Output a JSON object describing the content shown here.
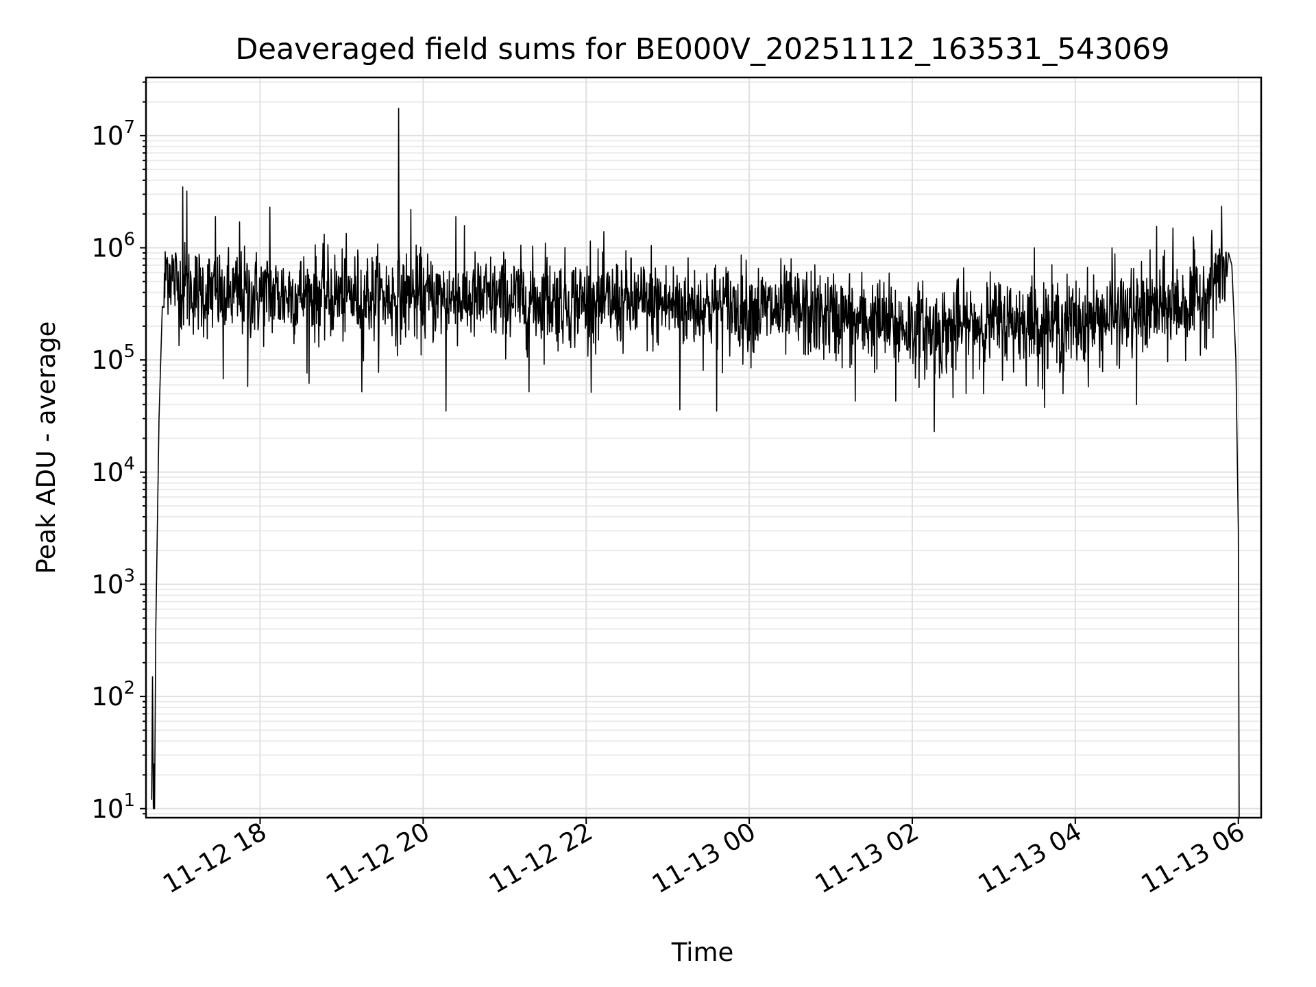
{
  "chart_data": {
    "type": "line",
    "title": "Deaveraged field sums for BE000V_20251112_163531_543069",
    "xlabel": "Time",
    "ylabel": "Peak ADU - average",
    "yscale": "log",
    "ylim": [
      8.3,
      33000000
    ],
    "xlim_hours": [
      16.6,
      30.28
    ],
    "grid": true,
    "y_ticks": [
      {
        "value": 10,
        "base": "10",
        "exp": "1"
      },
      {
        "value": 100,
        "base": "10",
        "exp": "2"
      },
      {
        "value": 1000,
        "base": "10",
        "exp": "3"
      },
      {
        "value": 10000,
        "base": "10",
        "exp": "4"
      },
      {
        "value": 100000,
        "base": "10",
        "exp": "5"
      },
      {
        "value": 1000000,
        "base": "10",
        "exp": "6"
      },
      {
        "value": 10000000,
        "base": "10",
        "exp": "7"
      }
    ],
    "x_ticks": [
      {
        "hours": 18,
        "label": "11-12 18"
      },
      {
        "hours": 20,
        "label": "11-12 20"
      },
      {
        "hours": 22,
        "label": "11-12 22"
      },
      {
        "hours": 24,
        "label": "11-13 00"
      },
      {
        "hours": 26,
        "label": "11-13 02"
      },
      {
        "hours": 28,
        "label": "11-13 04"
      },
      {
        "hours": 30,
        "label": "11-13 06"
      }
    ],
    "series": [
      {
        "name": "deaveraged field sum",
        "color": "#000000",
        "baseline": [
          [
            16.72,
            30000
          ],
          [
            16.85,
            700000
          ],
          [
            17.0,
            450000
          ],
          [
            17.5,
            380000
          ],
          [
            18.5,
            380000
          ],
          [
            19.5,
            370000
          ],
          [
            20.5,
            350000
          ],
          [
            21.5,
            340000
          ],
          [
            22.5,
            320000
          ],
          [
            23.5,
            300000
          ],
          [
            24.5,
            270000
          ],
          [
            25.5,
            220000
          ],
          [
            26.3,
            180000
          ],
          [
            27.0,
            220000
          ],
          [
            28.0,
            210000
          ],
          [
            28.5,
            250000
          ],
          [
            29.0,
            280000
          ],
          [
            29.5,
            320000
          ],
          [
            29.75,
            600000
          ],
          [
            29.9,
            650000
          ]
        ],
        "spikes": [
          {
            "t": 17.05,
            "v": 3500000
          },
          {
            "t": 17.1,
            "v": 3200000
          },
          {
            "t": 17.45,
            "v": 1900000
          },
          {
            "t": 17.75,
            "v": 1700000
          },
          {
            "t": 18.12,
            "v": 2300000
          },
          {
            "t": 19.7,
            "v": 17500000
          },
          {
            "t": 19.85,
            "v": 2200000
          },
          {
            "t": 20.4,
            "v": 1900000
          },
          {
            "t": 21.5,
            "v": 1100000
          },
          {
            "t": 22.05,
            "v": 1150000
          },
          {
            "t": 22.8,
            "v": 1050000
          },
          {
            "t": 27.5,
            "v": 1000000
          },
          {
            "t": 28.45,
            "v": 1000000
          },
          {
            "t": 29.0,
            "v": 1550000
          },
          {
            "t": 29.2,
            "v": 1500000
          },
          {
            "t": 29.45,
            "v": 1250000
          }
        ],
        "dips": [
          {
            "t": 17.55,
            "v": 68000
          },
          {
            "t": 17.85,
            "v": 58000
          },
          {
            "t": 18.6,
            "v": 62000
          },
          {
            "t": 19.25,
            "v": 52000
          },
          {
            "t": 20.28,
            "v": 35000
          },
          {
            "t": 21.3,
            "v": 52000
          },
          {
            "t": 23.15,
            "v": 36000
          },
          {
            "t": 23.6,
            "v": 35000
          },
          {
            "t": 25.3,
            "v": 43000
          },
          {
            "t": 25.8,
            "v": 43000
          },
          {
            "t": 26.27,
            "v": 23000
          },
          {
            "t": 26.5,
            "v": 46000
          },
          {
            "t": 27.6,
            "v": 55000
          },
          {
            "t": 27.85,
            "v": 50000
          },
          {
            "t": 28.75,
            "v": 40000
          }
        ],
        "edges": {
          "start": [
            [
              16.67,
              12
            ],
            [
              16.68,
              150
            ],
            [
              16.69,
              10
            ],
            [
              16.7,
              25
            ],
            [
              16.705,
              10
            ],
            [
              16.72,
              400
            ],
            [
              16.76,
              30000
            ],
            [
              16.8,
              300000
            ]
          ],
          "end": [
            [
              29.88,
              900000
            ],
            [
              29.92,
              700000
            ],
            [
              29.97,
              100000
            ],
            [
              30.0,
              3000
            ],
            [
              30.01,
              10
            ]
          ]
        }
      }
    ]
  }
}
